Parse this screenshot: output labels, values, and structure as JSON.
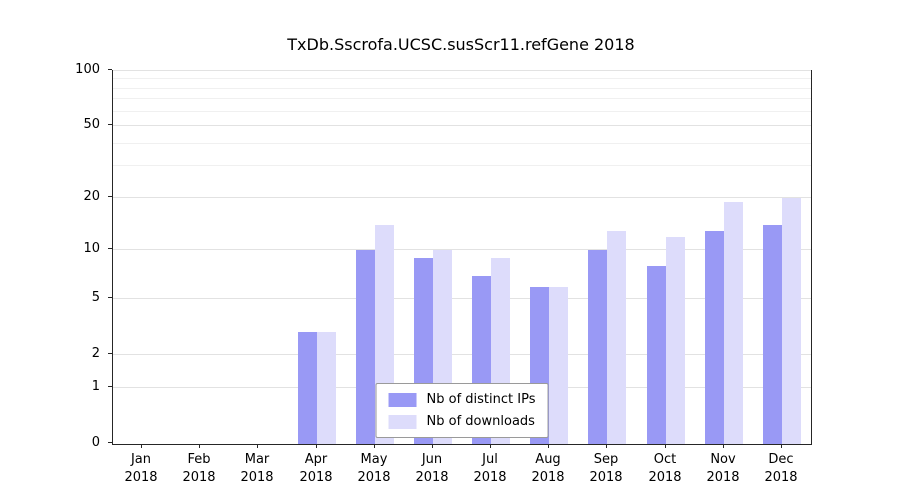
{
  "title": "TxDb.Sscrofa.UCSC.susScr11.refGene 2018",
  "colors": {
    "distinct_ips": "#9999f5",
    "downloads": "#dddcfb",
    "grid_major": "#e2e2e2",
    "grid_minor": "#f0f0f0",
    "axis": "#262626"
  },
  "legend": {
    "items": [
      {
        "label": "Nb of distinct IPs",
        "color_key": "distinct_ips"
      },
      {
        "label": "Nb of downloads",
        "color_key": "downloads"
      }
    ]
  },
  "chart_data": {
    "type": "bar",
    "title": "TxDb.Sscrofa.UCSC.susScr11.refGene 2018",
    "categories": [
      "Jan 2018",
      "Feb 2018",
      "Mar 2018",
      "Apr 2018",
      "May 2018",
      "Jun 2018",
      "Jul 2018",
      "Aug 2018",
      "Sep 2018",
      "Oct 2018",
      "Nov 2018",
      "Dec 2018"
    ],
    "x_tick_labels": [
      {
        "month": "Jan",
        "year": "2018"
      },
      {
        "month": "Feb",
        "year": "2018"
      },
      {
        "month": "Mar",
        "year": "2018"
      },
      {
        "month": "Apr",
        "year": "2018"
      },
      {
        "month": "May",
        "year": "2018"
      },
      {
        "month": "Jun",
        "year": "2018"
      },
      {
        "month": "Jul",
        "year": "2018"
      },
      {
        "month": "Aug",
        "year": "2018"
      },
      {
        "month": "Sep",
        "year": "2018"
      },
      {
        "month": "Oct",
        "year": "2018"
      },
      {
        "month": "Nov",
        "year": "2018"
      },
      {
        "month": "Dec",
        "year": "2018"
      }
    ],
    "series": [
      {
        "name": "Nb of distinct IPs",
        "values": [
          0,
          0,
          0,
          3,
          10,
          9,
          7,
          6,
          10,
          8,
          13,
          14
        ]
      },
      {
        "name": "Nb of downloads",
        "values": [
          0,
          0,
          0,
          3,
          14,
          10,
          9,
          6,
          13,
          12,
          19,
          20
        ]
      }
    ],
    "yscale": "log1p",
    "y_ticks": [
      0,
      1,
      2,
      5,
      10,
      20,
      50,
      100
    ],
    "y_minor_ticks": [
      30,
      40,
      60,
      70,
      80,
      90
    ],
    "ylim": [
      0,
      100
    ],
    "grid": true,
    "legend_position": "bottom-center-inside"
  }
}
